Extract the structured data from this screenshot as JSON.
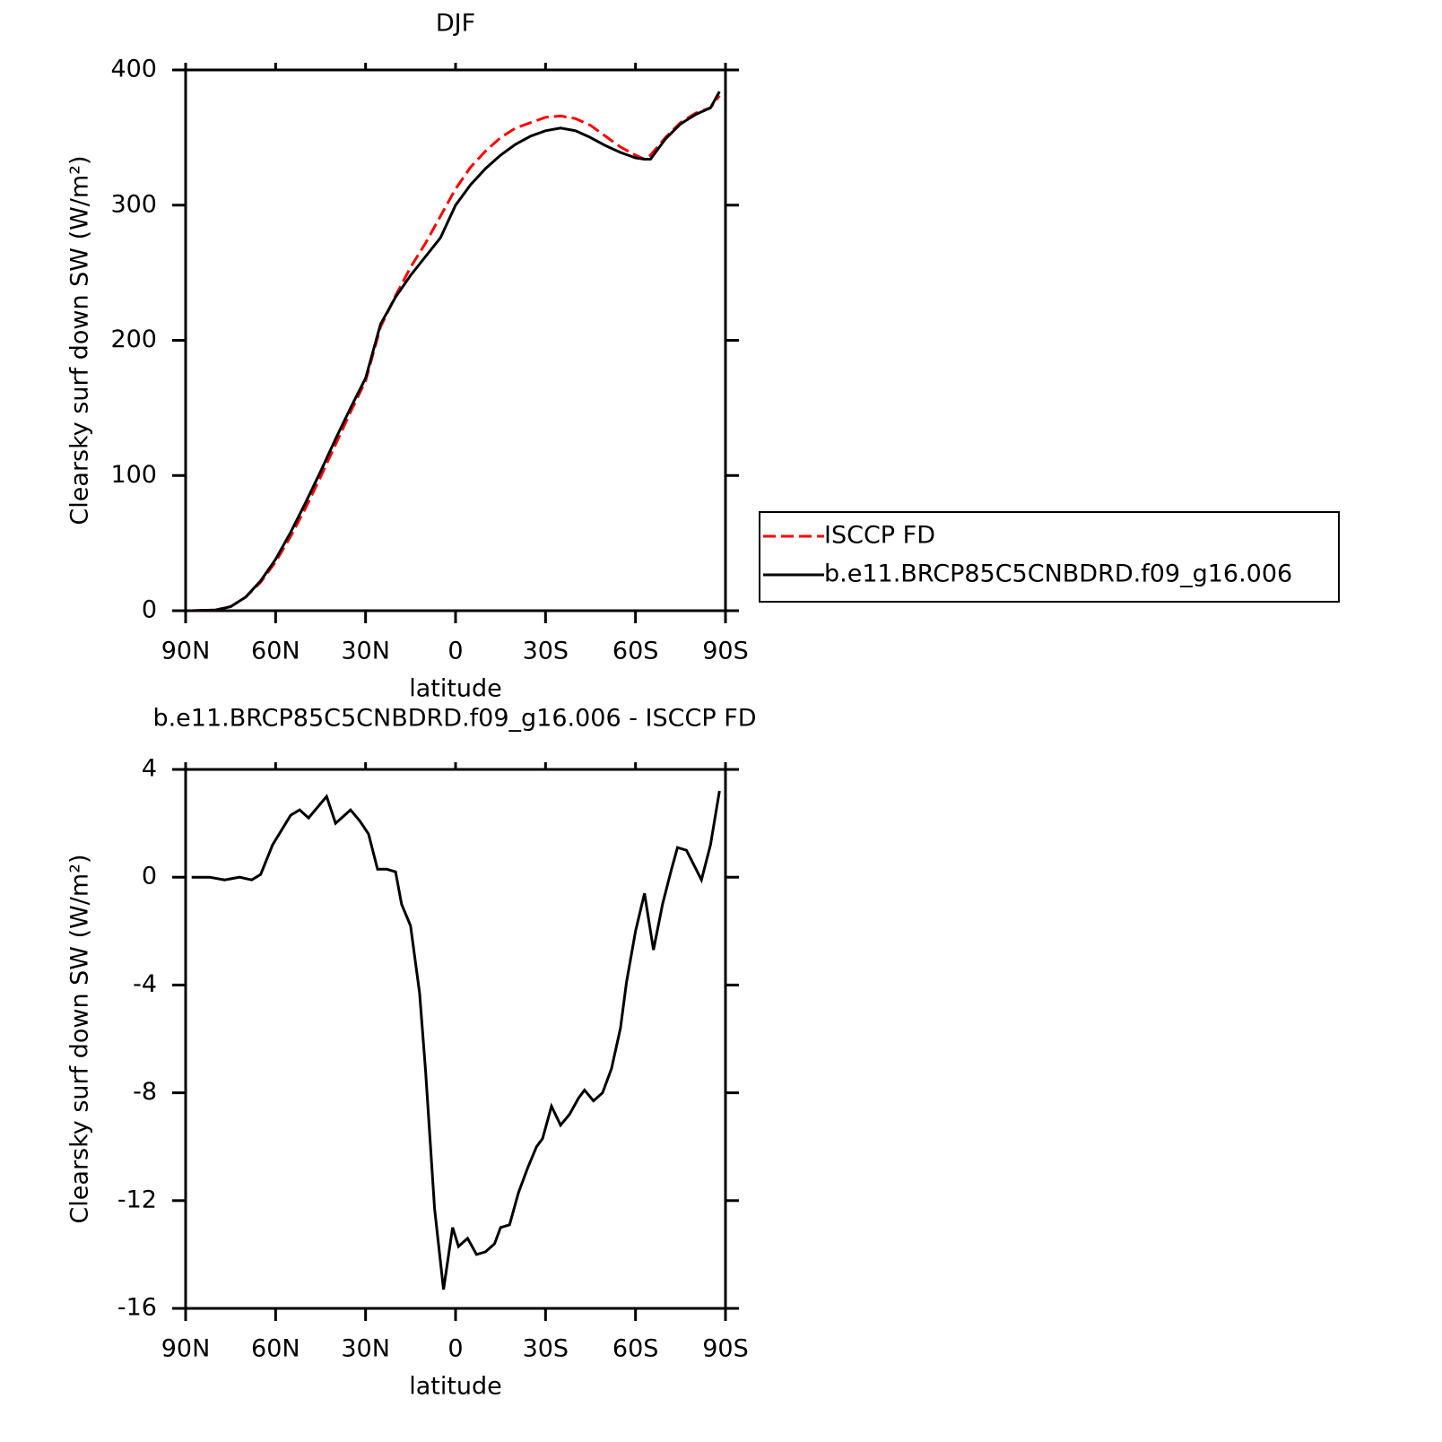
{
  "chart_data": [
    {
      "type": "line",
      "title": "DJF",
      "xlabel": "latitude",
      "ylabel": "Clearsky surf down SW (W/m²)",
      "x": [
        88,
        80,
        75,
        70,
        65,
        60,
        55,
        50,
        45,
        40,
        35,
        30,
        25,
        20,
        15,
        10,
        5,
        0,
        -5,
        -10,
        -15,
        -20,
        -25,
        -30,
        -35,
        -40,
        -45,
        -50,
        -55,
        -60,
        -63,
        -65,
        -70,
        -75,
        -80,
        -85,
        -88
      ],
      "series": [
        {
          "name": "ISCCP FD",
          "color": "#ff0000",
          "style": "dashed",
          "values": [
            0,
            0.5,
            3,
            10,
            21,
            36,
            55,
            76,
            99,
            123,
            147,
            170,
            210,
            233,
            254,
            272,
            292,
            312,
            328,
            340,
            350,
            357,
            361,
            365,
            366,
            364,
            359,
            351,
            343,
            337,
            334,
            337,
            350,
            361,
            368,
            372,
            381
          ]
        },
        {
          "name": "b.e11.BRCP85C5CNBDRD.f09_g16.006",
          "color": "#000000",
          "style": "solid",
          "values": [
            0,
            0.5,
            3,
            10,
            22,
            38,
            58,
            80,
            103,
            127,
            150,
            172,
            212,
            232,
            248,
            262,
            276,
            300,
            315,
            327,
            337,
            345,
            351,
            355,
            357,
            355,
            350,
            344,
            339,
            335,
            334,
            334,
            349,
            360,
            367,
            372,
            384
          ]
        }
      ],
      "xlim": [
        90,
        -90
      ],
      "xticks": [
        {
          "value": 90,
          "label": "90N"
        },
        {
          "value": 60,
          "label": "60N"
        },
        {
          "value": 30,
          "label": "30N"
        },
        0,
        {
          "value": -30,
          "label": "30S"
        },
        {
          "value": -60,
          "label": "60S"
        },
        {
          "value": -90,
          "label": "90S"
        }
      ],
      "ylim": [
        0,
        400
      ],
      "yticks": [
        0,
        100,
        200,
        300,
        400
      ],
      "legend": "right"
    },
    {
      "type": "line",
      "title": "b.e11.BRCP85C5CNBDRD.f09_g16.006 - ISCCP FD",
      "xlabel": "latitude",
      "ylabel": "Clearsky surf down SW (W/m²)",
      "x": [
        88,
        82,
        77,
        72,
        68,
        65,
        61,
        55,
        52,
        49,
        43,
        40,
        38,
        35,
        32,
        29,
        26,
        23,
        20,
        18,
        15,
        12,
        10,
        7,
        4,
        1,
        -1,
        -4,
        -7,
        -10,
        -13,
        -15,
        -18,
        -21,
        -24,
        -27,
        -29,
        -32,
        -35,
        -38,
        -41,
        -43,
        -46,
        -49,
        -52,
        -55,
        -57,
        -60,
        -63,
        -66,
        -69,
        -72,
        -74,
        -77,
        -82,
        -85,
        -88
      ],
      "values": [
        0,
        0,
        -0.1,
        0,
        -0.1,
        0.1,
        1.2,
        2.3,
        2.5,
        2.2,
        3.0,
        2.0,
        2.2,
        2.5,
        2.1,
        1.6,
        0.3,
        0.3,
        0.2,
        -1.0,
        -1.8,
        -4.3,
        -7.2,
        -12.3,
        -15.3,
        -13.0,
        -13.7,
        -13.4,
        -14.0,
        -13.9,
        -13.6,
        -13.0,
        -12.9,
        -11.7,
        -10.8,
        -10.0,
        -9.7,
        -8.5,
        -9.2,
        -8.8,
        -8.2,
        -7.9,
        -8.3,
        -8.0,
        -7.1,
        -5.6,
        -3.9,
        -2.0,
        -0.6,
        -2.7,
        -1.0,
        0.3,
        1.1,
        1.0,
        -0.1,
        1.2,
        3.2
      ],
      "color": "#000000",
      "xlim": [
        90,
        -90
      ],
      "xticks": [
        {
          "value": 90,
          "label": "90N"
        },
        {
          "value": 60,
          "label": "60N"
        },
        {
          "value": 30,
          "label": "30N"
        },
        0,
        {
          "value": -30,
          "label": "30S"
        },
        {
          "value": -60,
          "label": "60S"
        },
        {
          "value": -90,
          "label": "90S"
        }
      ],
      "ylim": [
        -16,
        4
      ],
      "yticks": [
        -16,
        -12,
        -8,
        -4,
        0,
        4
      ]
    }
  ]
}
